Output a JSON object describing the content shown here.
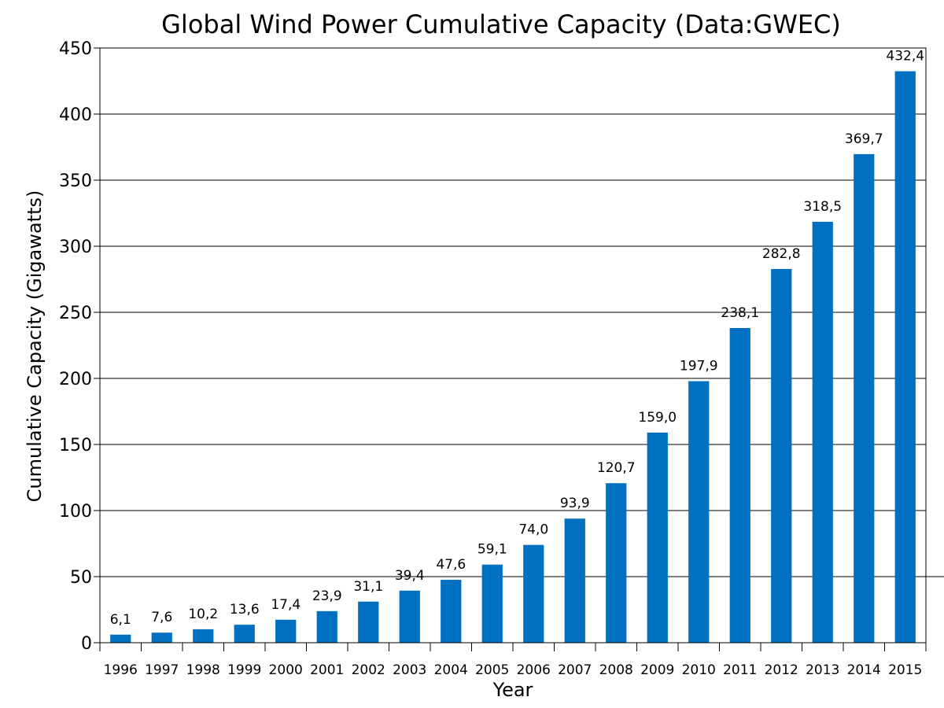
{
  "chart_data": {
    "type": "bar",
    "title": "Global Wind Power Cumulative Capacity (Data:GWEC)",
    "xlabel": "Year",
    "ylabel": "Cumulative Capacity (Gigawatts)",
    "ylim": [
      0,
      450
    ],
    "yticks": [
      0,
      50,
      100,
      150,
      200,
      250,
      300,
      350,
      400,
      450
    ],
    "grid": true,
    "bar_color": "#0070c0",
    "categories": [
      "1996",
      "1997",
      "1998",
      "1999",
      "2000",
      "2001",
      "2002",
      "2003",
      "2004",
      "2005",
      "2006",
      "2007",
      "2008",
      "2009",
      "2010",
      "2011",
      "2012",
      "2013",
      "2014",
      "2015"
    ],
    "values": [
      6.1,
      7.6,
      10.2,
      13.6,
      17.4,
      23.9,
      31.1,
      39.4,
      47.6,
      59.1,
      74.0,
      93.9,
      120.7,
      159.0,
      197.9,
      238.1,
      282.8,
      318.5,
      369.7,
      432.4
    ],
    "data_labels": [
      "6,1",
      "7,6",
      "10,2",
      "13,6",
      "17,4",
      "23,9",
      "31,1",
      "39,4",
      "47,6",
      "59,1",
      "74,0",
      "93,9",
      "120,7",
      "159,0",
      "197,9",
      "238,1",
      "282,8",
      "318,5",
      "369,7",
      "432,4"
    ]
  }
}
